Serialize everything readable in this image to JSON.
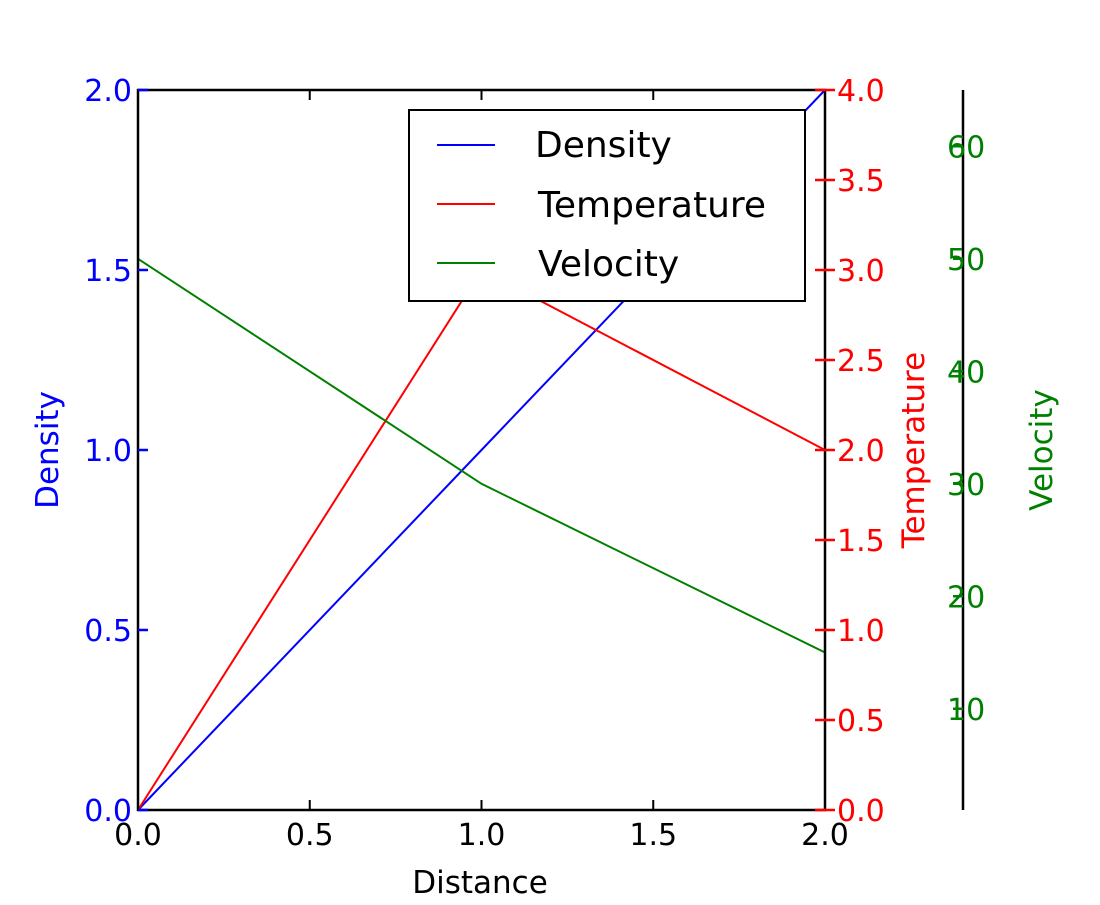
{
  "chart_data": {
    "type": "line",
    "title": "",
    "x": [
      0,
      1,
      2
    ],
    "xlabel": "Distance",
    "xlim": [
      0,
      2
    ],
    "xticks": [
      "0.0",
      "0.5",
      "1.0",
      "1.5",
      "2.0"
    ],
    "grid": false,
    "legend_position": "upper-right",
    "axes": {
      "density": {
        "label": "Density",
        "side": "left",
        "color": "#0000ff",
        "ylim": [
          0,
          2
        ],
        "ticks": [
          0.0,
          0.5,
          1.0,
          1.5,
          2.0
        ],
        "tick_labels": [
          "0.0",
          "0.5",
          "1.0",
          "1.5",
          "2.0"
        ]
      },
      "temperature": {
        "label": "Temperature",
        "side": "right",
        "color": "#ff0000",
        "ylim": [
          0,
          4
        ],
        "ticks": [
          0.0,
          0.5,
          1.0,
          1.5,
          2.0,
          2.5,
          3.0,
          3.5,
          4.0
        ],
        "tick_labels": [
          "0.0",
          "0.5",
          "1.0",
          "1.5",
          "2.0",
          "2.5",
          "3.0",
          "3.5",
          "4.0"
        ]
      },
      "velocity": {
        "label": "Velocity",
        "side": "right-offset",
        "color": "#008000",
        "ylim": [
          1,
          65
        ],
        "ticks": [
          10,
          20,
          30,
          40,
          50,
          60
        ],
        "tick_labels": [
          "10",
          "20",
          "30",
          "40",
          "50",
          "60"
        ]
      }
    },
    "series": [
      {
        "name": "Density",
        "axis": "density",
        "color": "#0000ff",
        "values": [
          0,
          1,
          2
        ]
      },
      {
        "name": "Temperature",
        "axis": "temperature",
        "color": "#ff0000",
        "values": [
          0,
          3,
          2
        ]
      },
      {
        "name": "Velocity",
        "axis": "velocity",
        "color": "#008000",
        "values": [
          50,
          30,
          15
        ]
      }
    ]
  }
}
